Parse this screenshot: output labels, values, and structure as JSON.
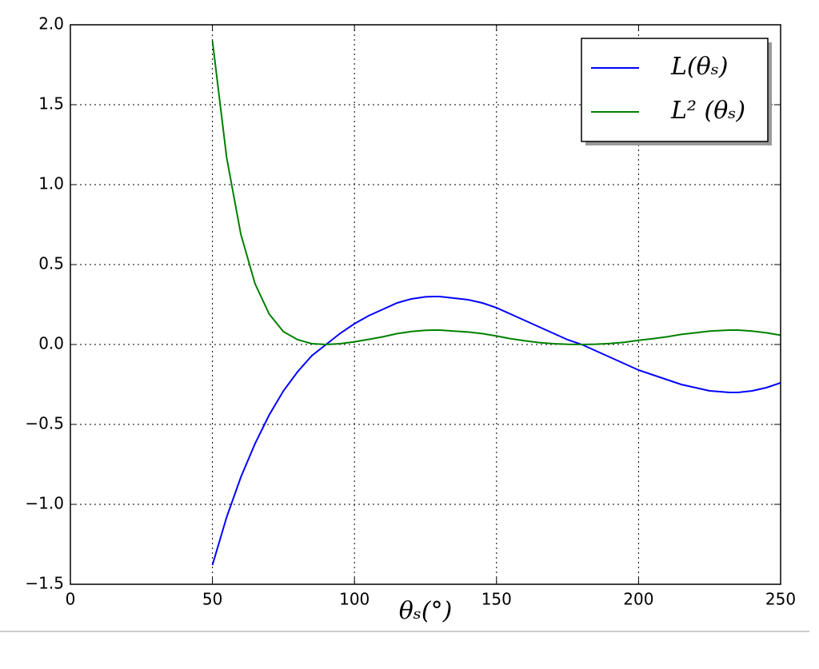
{
  "chart_data": {
    "type": "line",
    "x_label": "θₛ(°)",
    "x": [
      50,
      55,
      60,
      65,
      70,
      75,
      80,
      85,
      90,
      95,
      100,
      105,
      110,
      115,
      120,
      125,
      128,
      130,
      135,
      140,
      145,
      150,
      155,
      160,
      165,
      170,
      175,
      180,
      185,
      190,
      195,
      200,
      205,
      210,
      215,
      220,
      225,
      232,
      235,
      240,
      245,
      250
    ],
    "series": [
      {
        "name": "L(θₛ)",
        "color": "#0000ff",
        "values": [
          -1.38,
          -1.08,
          -0.83,
          -0.62,
          -0.44,
          -0.29,
          -0.17,
          -0.07,
          0.0,
          0.07,
          0.13,
          0.18,
          0.22,
          0.26,
          0.285,
          0.298,
          0.3,
          0.3,
          0.29,
          0.28,
          0.26,
          0.23,
          0.19,
          0.15,
          0.11,
          0.07,
          0.03,
          0.0,
          -0.04,
          -0.08,
          -0.12,
          -0.16,
          -0.19,
          -0.22,
          -0.25,
          -0.27,
          -0.29,
          -0.3,
          -0.3,
          -0.29,
          -0.27,
          -0.24
        ]
      },
      {
        "name": "L² (θₛ)",
        "color": "#008000",
        "values": [
          1.9,
          1.17,
          0.69,
          0.38,
          0.19,
          0.08,
          0.03,
          0.005,
          0.0,
          0.005,
          0.017,
          0.032,
          0.048,
          0.068,
          0.081,
          0.089,
          0.09,
          0.09,
          0.084,
          0.078,
          0.068,
          0.053,
          0.036,
          0.023,
          0.012,
          0.005,
          0.001,
          0.0,
          0.002,
          0.006,
          0.014,
          0.026,
          0.036,
          0.048,
          0.063,
          0.073,
          0.084,
          0.09,
          0.09,
          0.084,
          0.073,
          0.058
        ]
      }
    ],
    "xlim": [
      0,
      250
    ],
    "xticks": [
      0,
      50,
      100,
      150,
      200,
      250
    ],
    "ylim": [
      -1.5,
      2.0
    ],
    "yticks": [
      {
        "value": -1.5,
        "label": "−1.5"
      },
      {
        "value": -1.0,
        "label": "−1.0"
      },
      {
        "value": -0.5,
        "label": "−0.5"
      },
      {
        "value": 0,
        "label": "0.0"
      },
      {
        "value": 0.5,
        "label": "0.5"
      },
      {
        "value": 1.0,
        "label": "1.0"
      },
      {
        "value": 1.5,
        "label": "1.5"
      },
      {
        "value": 2.0,
        "label": "2.0"
      }
    ],
    "grid": true,
    "legend": "upper-right"
  }
}
